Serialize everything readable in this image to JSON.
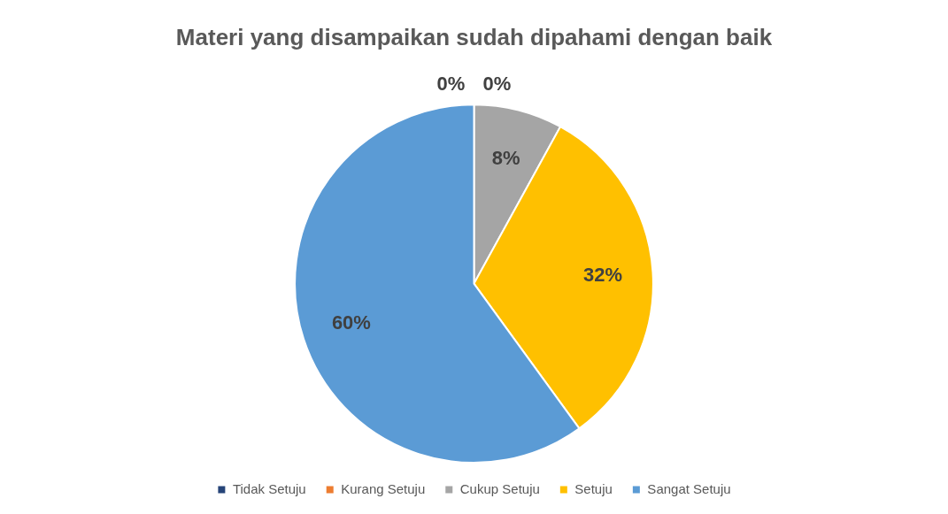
{
  "chart_data": {
    "type": "pie",
    "title": "Materi yang disampaikan sudah dipahami dengan baik",
    "categories": [
      "Tidak Setuju",
      "Kurang Setuju",
      "Cukup Setuju",
      "Setuju",
      "Sangat Setuju"
    ],
    "values": [
      0,
      0,
      8,
      32,
      60
    ],
    "value_labels": [
      "0%",
      "0%",
      "8%",
      "32%",
      "60%"
    ],
    "colors": [
      "#264478",
      "#ed7d31",
      "#a5a5a5",
      "#ffc000",
      "#5b9bd5"
    ],
    "legend": "bottom"
  }
}
